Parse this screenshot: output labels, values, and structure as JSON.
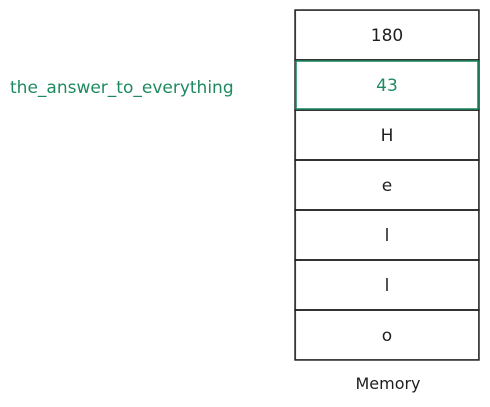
{
  "memory": {
    "caption": "Memory",
    "cells": [
      {
        "value": "180",
        "highlighted": false
      },
      {
        "value": "43",
        "highlighted": true
      },
      {
        "value": "H",
        "highlighted": false
      },
      {
        "value": "e",
        "highlighted": false
      },
      {
        "value": "l",
        "highlighted": false
      },
      {
        "value": "l",
        "highlighted": false
      },
      {
        "value": "o",
        "highlighted": false
      }
    ]
  },
  "pointer_label": {
    "text": "the_answer_to_everything"
  },
  "colors": {
    "ink": "#1e1e1e",
    "highlight": "#1f8a61"
  }
}
